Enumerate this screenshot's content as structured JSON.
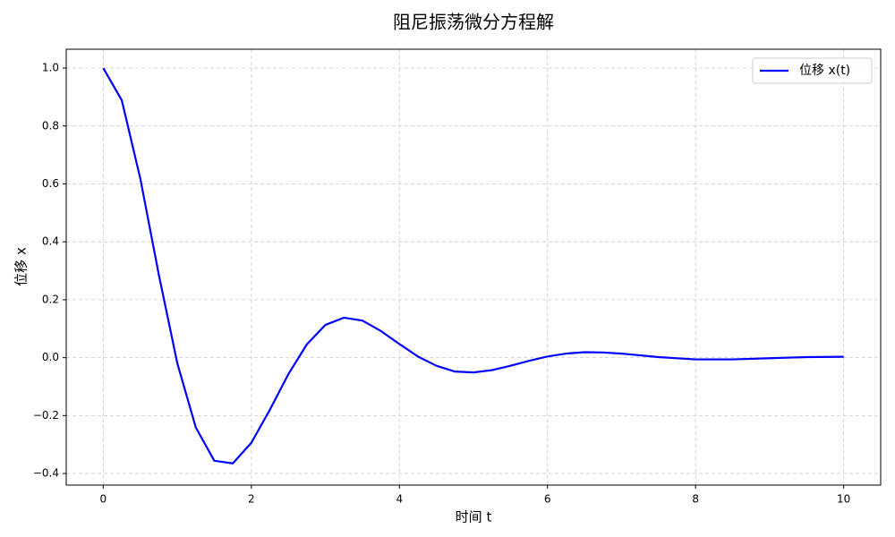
{
  "chart_data": {
    "type": "line",
    "title": "阻尼振荡微分方程解",
    "x_label": "时间 t",
    "y_label": "位移 x",
    "x": [
      0,
      0.25,
      0.5,
      0.75,
      1.0,
      1.25,
      1.5,
      1.75,
      2.0,
      2.25,
      2.5,
      2.75,
      3.0,
      3.25,
      3.5,
      3.75,
      4.0,
      4.25,
      4.5,
      4.75,
      5.0,
      5.25,
      5.5,
      5.75,
      6.0,
      6.25,
      6.5,
      6.75,
      7.0,
      7.5,
      8.0,
      8.5,
      9.0,
      9.5,
      10.0
    ],
    "series": [
      {
        "name": "位移 x(t)",
        "color": "#0000ff",
        "values": [
          1.0,
          0.889,
          0.619,
          0.287,
          -0.019,
          -0.241,
          -0.356,
          -0.365,
          -0.294,
          -0.18,
          -0.057,
          0.046,
          0.113,
          0.138,
          0.128,
          0.092,
          0.047,
          0.004,
          -0.028,
          -0.048,
          -0.051,
          -0.043,
          -0.028,
          -0.011,
          0.004,
          0.014,
          0.019,
          0.018,
          0.014,
          0.002,
          -0.006,
          -0.006,
          -0.002,
          0.002,
          0.003
        ]
      }
    ],
    "xlim": [
      -0.5,
      10.5
    ],
    "ylim": [
      -0.44,
      1.065
    ],
    "xticks": [
      0,
      2,
      4,
      6,
      8,
      10
    ],
    "yticks": [
      {
        "value": -0.4,
        "label": "−0.4"
      },
      {
        "value": -0.2,
        "label": "−0.2"
      },
      {
        "value": 0,
        "label": "0.0"
      },
      {
        "value": 0.2,
        "label": "0.2"
      },
      {
        "value": 0.4,
        "label": "0.4"
      },
      {
        "value": 0.6,
        "label": "0.6"
      },
      {
        "value": 0.8,
        "label": "0.8"
      },
      {
        "value": 1.0,
        "label": "1.0"
      }
    ],
    "grid": true,
    "legend": "upper-right"
  }
}
